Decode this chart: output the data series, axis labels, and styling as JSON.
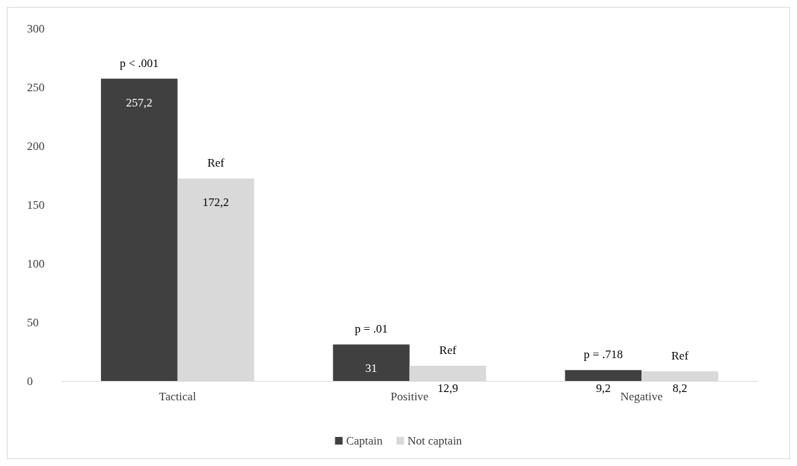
{
  "chart_data": {
    "type": "bar",
    "categories": [
      "Tactical",
      "Positive",
      "Negative"
    ],
    "series": [
      {
        "name": "Captain",
        "color": "#404040",
        "values": [
          257.2,
          31,
          9.2
        ],
        "value_labels": [
          "257,2",
          "31",
          "9,2"
        ]
      },
      {
        "name": "Not captain",
        "color": "#d9d9d9",
        "values": [
          172.2,
          12.9,
          8.2
        ],
        "value_labels": [
          "172,2",
          "12,9",
          "8,2"
        ]
      }
    ],
    "ylim": [
      0,
      300
    ],
    "yticks": [
      0,
      50,
      100,
      150,
      200,
      250,
      300
    ],
    "grid": false,
    "legend": "bottom",
    "annotations": [
      {
        "text": "p < .001",
        "x": "Tactical",
        "y": 257.2
      },
      {
        "text": "Ref",
        "x": "Tactical",
        "y": 172.2
      },
      {
        "text": "p = .01",
        "x": "Positive",
        "y": 31
      },
      {
        "text": "Ref",
        "x": "Positive",
        "y": 12.9
      },
      {
        "text": "p = .718",
        "x": "Negative",
        "y": 9.2
      },
      {
        "text": "Ref",
        "x": "Negative",
        "y": 8.2
      }
    ]
  }
}
